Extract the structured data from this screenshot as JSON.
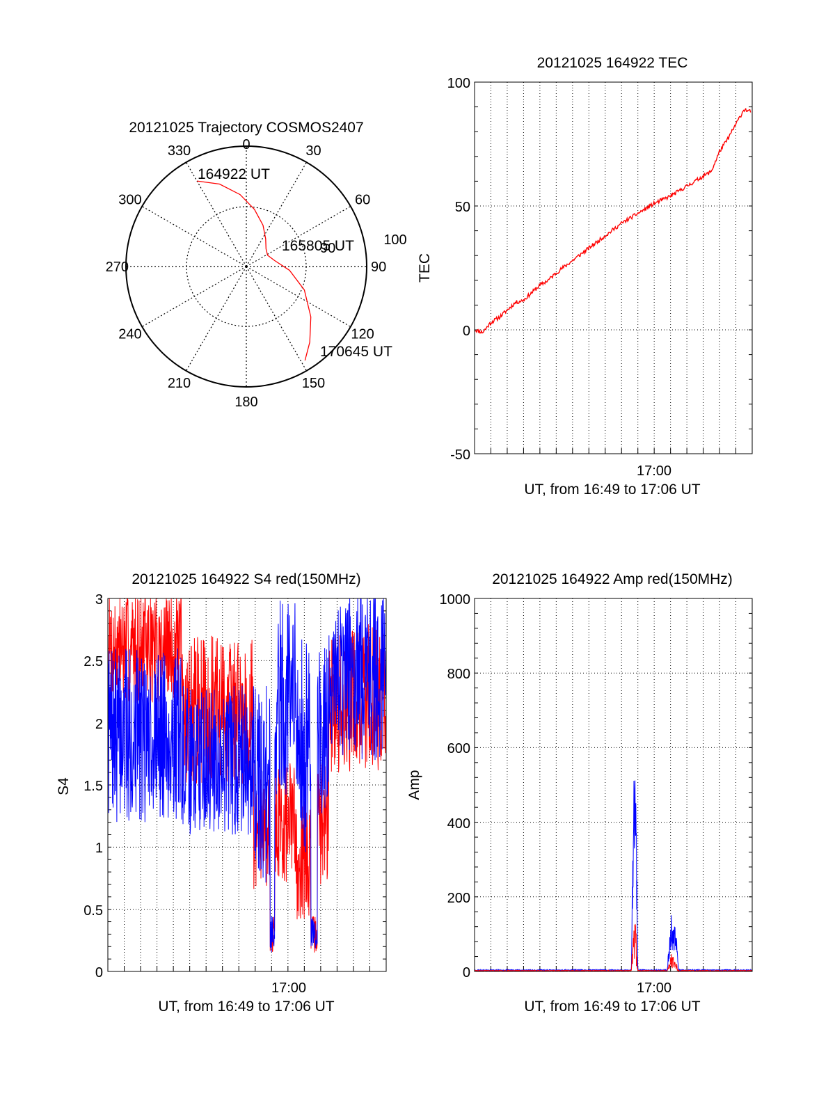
{
  "colors": {
    "red": "#ff0000",
    "blue": "#0000ff",
    "black": "#000000",
    "grid": "#000000"
  },
  "chart_data": [
    {
      "id": "trajectory",
      "type": "polar",
      "title": "20121025 Trajectory COSMOS2407",
      "angle_labels": [
        "0",
        "30",
        "60",
        "90",
        "120",
        "150",
        "180",
        "210",
        "240",
        "270",
        "300",
        "330"
      ],
      "ring_labels": [
        "90",
        "100"
      ],
      "grid": true,
      "track": {
        "azimuth_deg": [
          330,
          342,
          355,
          8,
          22,
          35,
          48,
          62,
          78,
          95,
          112,
          128,
          140,
          148
        ],
        "radius_frac": [
          0.82,
          0.72,
          0.6,
          0.48,
          0.37,
          0.28,
          0.22,
          0.2,
          0.24,
          0.36,
          0.52,
          0.68,
          0.82,
          0.92
        ],
        "color": "red"
      },
      "annotations": [
        "164922 UT",
        "165805 UT",
        "170645 UT"
      ]
    },
    {
      "id": "tec",
      "type": "line",
      "title": "20121025 164922 TEC",
      "xlabel": "UT, from 16:49 to 17:06 UT",
      "ylabel": "TEC",
      "x_tick_labels": [
        "17:00"
      ],
      "y_tick_labels": [
        "100",
        "50",
        "0",
        "-50"
      ],
      "ylim": [
        -50,
        100
      ],
      "grid": true,
      "series": [
        {
          "color": "red",
          "x_minutes": [
            0,
            0.5,
            1,
            1.5,
            2,
            2.5,
            3,
            3.5,
            4,
            4.5,
            5,
            6,
            7,
            8,
            9,
            10,
            11,
            12,
            12.5,
            13,
            13.5,
            14,
            14.5,
            15,
            15.5,
            16,
            16.5,
            16.9
          ],
          "values": [
            0,
            -1,
            3,
            5,
            8,
            11,
            12,
            15,
            18,
            20,
            23,
            28,
            33,
            38,
            43,
            47,
            51,
            54,
            56,
            58,
            60,
            62,
            64,
            72,
            77,
            83,
            89,
            88
          ]
        }
      ]
    },
    {
      "id": "s4",
      "type": "line",
      "title": "20121025 164922 S4 red(150MHz)",
      "xlabel": "UT, from 16:49 to 17:06 UT",
      "ylabel": "S4",
      "x_tick_labels": [
        "17:00"
      ],
      "y_tick_labels": [
        "3",
        "2.5",
        "2",
        "1.5",
        "1",
        "0.5",
        "0"
      ],
      "ylim": [
        0,
        3
      ],
      "grid": true,
      "series": [
        {
          "color": "red"
        },
        {
          "color": "blue"
        }
      ]
    },
    {
      "id": "amp",
      "type": "line",
      "title": "20121025 164922 Amp red(150MHz)",
      "xlabel": "UT, from 16:49 to 17:06 UT",
      "ylabel": "Amp",
      "x_tick_labels": [
        "17:00"
      ],
      "y_tick_labels": [
        "1000",
        "800",
        "600",
        "400",
        "200",
        "0"
      ],
      "ylim": [
        0,
        1000
      ],
      "grid": true,
      "series": [
        {
          "color": "blue"
        },
        {
          "color": "red"
        }
      ]
    }
  ]
}
